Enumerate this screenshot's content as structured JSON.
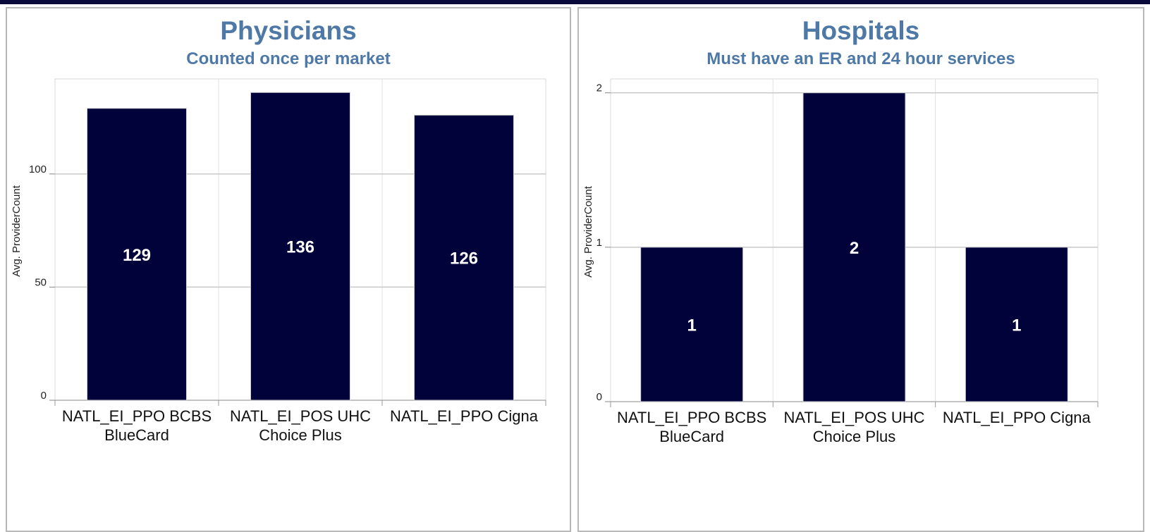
{
  "colors": {
    "bar": "#02023a",
    "title": "#4e79a7",
    "grid": "#c8c8c8",
    "frame": "#b8b8b8",
    "topbar": "#0a0a3c"
  },
  "panels": [
    {
      "title": "Physicians",
      "subtitle": "Counted once per market"
    },
    {
      "title": "Hospitals",
      "subtitle": "Must have an ER and 24 hour services"
    }
  ],
  "chart_data": [
    {
      "type": "bar",
      "title": "Physicians",
      "subtitle": "Counted once per market",
      "ylabel": "Avg. ProviderCount",
      "xlabel": "",
      "categories": [
        [
          "NATL_EI_PPO BCBS",
          "BlueCard"
        ],
        [
          "NATL_EI_POS UHC",
          "Choice Plus"
        ],
        [
          "NATL_EI_PPO Cigna"
        ]
      ],
      "values": [
        129,
        136,
        126
      ],
      "data_labels": [
        "129",
        "136",
        "126"
      ],
      "ylim": [
        0,
        142
      ],
      "yticks": [
        0,
        50,
        100
      ],
      "grid": true,
      "legend": "none"
    },
    {
      "type": "bar",
      "title": "Hospitals",
      "subtitle": "Must have an ER and 24 hour services",
      "ylabel": "Avg. ProviderCount",
      "xlabel": "",
      "categories": [
        [
          "NATL_EI_PPO BCBS",
          "BlueCard"
        ],
        [
          "NATL_EI_POS UHC",
          "Choice Plus"
        ],
        [
          "NATL_EI_PPO Cigna"
        ]
      ],
      "values": [
        1,
        2,
        1
      ],
      "data_labels": [
        "1",
        "2",
        "1"
      ],
      "ylim": [
        0,
        2.09
      ],
      "yticks": [
        0,
        1,
        2
      ],
      "grid": true,
      "legend": "none"
    }
  ]
}
